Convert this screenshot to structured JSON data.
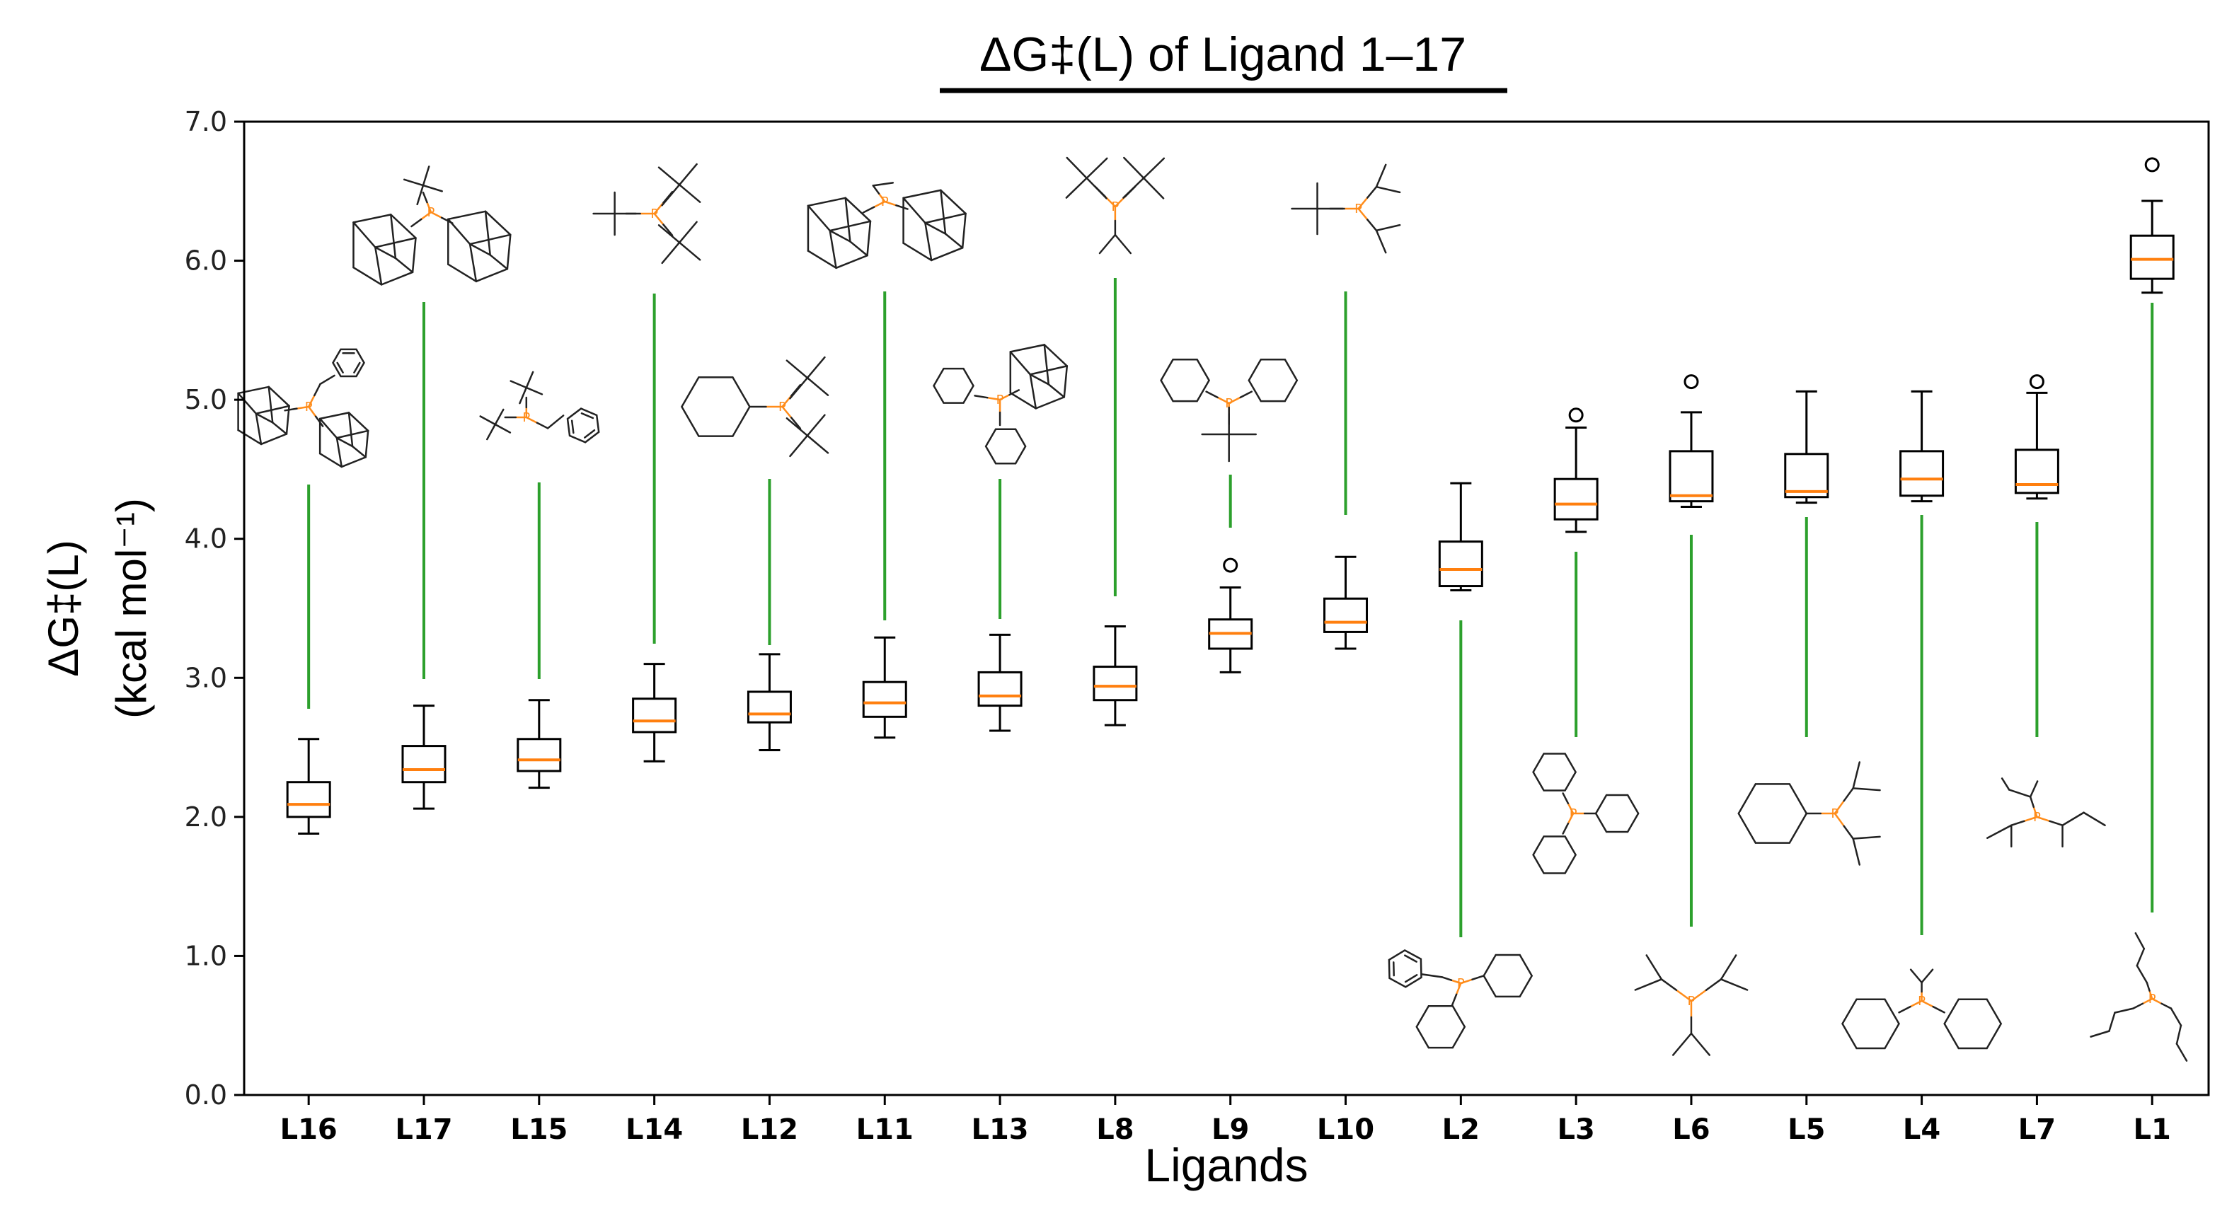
{
  "chart_data": {
    "type": "box",
    "title": "ΔG‡(L) of Ligand 1–17",
    "ylabel_line1": "ΔG‡(L)",
    "ylabel_line2": "(kcal mol⁻¹)",
    "xlabel": "Ligands",
    "ylim": [
      0.0,
      7.0
    ],
    "yticks": [
      0.0,
      1.0,
      2.0,
      3.0,
      4.0,
      5.0,
      6.0,
      7.0
    ],
    "ytick_labels": [
      "0.0",
      "1.0",
      "2.0",
      "3.0",
      "4.0",
      "5.0",
      "6.0",
      "7.0"
    ],
    "grid": false,
    "colors": {
      "box": "#000000",
      "median": "#ff7f0e",
      "connector": "#2ca02c",
      "phosphorus": "#ff8c1a",
      "structure": "#222222"
    },
    "categories": [
      "L16",
      "L17",
      "L15",
      "L14",
      "L12",
      "L11",
      "L13",
      "L8",
      "L9",
      "L10",
      "L2",
      "L3",
      "L6",
      "L5",
      "L4",
      "L7",
      "L1"
    ],
    "boxes": [
      {
        "ligand": "L16",
        "whislo": 1.88,
        "q1": 2.0,
        "med": 2.09,
        "q3": 2.25,
        "whishi": 2.56,
        "fliers": []
      },
      {
        "ligand": "L17",
        "whislo": 2.06,
        "q1": 2.25,
        "med": 2.34,
        "q3": 2.51,
        "whishi": 2.8,
        "fliers": []
      },
      {
        "ligand": "L15",
        "whislo": 2.21,
        "q1": 2.33,
        "med": 2.41,
        "q3": 2.56,
        "whishi": 2.84,
        "fliers": []
      },
      {
        "ligand": "L14",
        "whislo": 2.4,
        "q1": 2.61,
        "med": 2.69,
        "q3": 2.85,
        "whishi": 3.1,
        "fliers": []
      },
      {
        "ligand": "L12",
        "whislo": 2.48,
        "q1": 2.68,
        "med": 2.74,
        "q3": 2.9,
        "whishi": 3.17,
        "fliers": []
      },
      {
        "ligand": "L11",
        "whislo": 2.57,
        "q1": 2.72,
        "med": 2.82,
        "q3": 2.97,
        "whishi": 3.29,
        "fliers": []
      },
      {
        "ligand": "L13",
        "whislo": 2.62,
        "q1": 2.8,
        "med": 2.87,
        "q3": 3.04,
        "whishi": 3.31,
        "fliers": []
      },
      {
        "ligand": "L8",
        "whislo": 2.66,
        "q1": 2.84,
        "med": 2.94,
        "q3": 3.08,
        "whishi": 3.37,
        "fliers": []
      },
      {
        "ligand": "L9",
        "whislo": 3.04,
        "q1": 3.21,
        "med": 3.32,
        "q3": 3.42,
        "whishi": 3.65,
        "fliers": [
          3.81
        ]
      },
      {
        "ligand": "L10",
        "whislo": 3.21,
        "q1": 3.33,
        "med": 3.4,
        "q3": 3.57,
        "whishi": 3.87,
        "fliers": []
      },
      {
        "ligand": "L2",
        "whislo": 3.63,
        "q1": 3.66,
        "med": 3.78,
        "q3": 3.98,
        "whishi": 4.4,
        "fliers": []
      },
      {
        "ligand": "L3",
        "whislo": 4.05,
        "q1": 4.14,
        "med": 4.25,
        "q3": 4.43,
        "whishi": 4.8,
        "fliers": [
          4.89
        ]
      },
      {
        "ligand": "L6",
        "whislo": 4.23,
        "q1": 4.27,
        "med": 4.31,
        "q3": 4.63,
        "whishi": 4.91,
        "fliers": [
          5.13
        ]
      },
      {
        "ligand": "L5",
        "whislo": 4.26,
        "q1": 4.3,
        "med": 4.34,
        "q3": 4.61,
        "whishi": 5.06,
        "fliers": []
      },
      {
        "ligand": "L4",
        "whislo": 4.27,
        "q1": 4.31,
        "med": 4.43,
        "q3": 4.63,
        "whishi": 5.06,
        "fliers": []
      },
      {
        "ligand": "L7",
        "whislo": 4.29,
        "q1": 4.33,
        "med": 4.39,
        "q3": 4.64,
        "whishi": 5.05,
        "fliers": [
          5.13
        ]
      },
      {
        "ligand": "L1",
        "whislo": 5.77,
        "q1": 5.87,
        "med": 6.01,
        "q3": 6.18,
        "whishi": 6.43,
        "fliers": [
          6.69
        ]
      }
    ],
    "structures": [
      {
        "ligand": "L16",
        "type": "adamantyl2-benzyl",
        "position": "above"
      },
      {
        "ligand": "L17",
        "type": "adamantyl2-tbutyl",
        "position": "above"
      },
      {
        "ligand": "L15",
        "type": "tbutyl2-benzyl",
        "position": "above"
      },
      {
        "ligand": "L14",
        "type": "tbutyl3",
        "position": "above"
      },
      {
        "ligand": "L12",
        "type": "tbutyl2-cyclohexyl",
        "position": "above"
      },
      {
        "ligand": "L11",
        "type": "adamantyl2-ethyl",
        "position": "above"
      },
      {
        "ligand": "L13",
        "type": "adamantyl-cyclohexyl2",
        "position": "above"
      },
      {
        "ligand": "L8",
        "type": "tbutyl2-isopropyl",
        "position": "above"
      },
      {
        "ligand": "L9",
        "type": "cyclohexyl2-tbutyl",
        "position": "above"
      },
      {
        "ligand": "L10",
        "type": "tbutyl-isopropyl2",
        "position": "above"
      },
      {
        "ligand": "L2",
        "type": "cyclohexyl2-benzyl",
        "position": "below"
      },
      {
        "ligand": "L3",
        "type": "cyclohexyl3",
        "position": "below"
      },
      {
        "ligand": "L6",
        "type": "isopropyl3",
        "position": "below"
      },
      {
        "ligand": "L5",
        "type": "isopropyl2-cyclohexyl",
        "position": "below"
      },
      {
        "ligand": "L4",
        "type": "cyclohexyl2-isopropyl",
        "position": "below"
      },
      {
        "ligand": "L7",
        "type": "sec-butyl3",
        "position": "below"
      },
      {
        "ligand": "L1",
        "type": "n-butyl3",
        "position": "below"
      }
    ]
  }
}
